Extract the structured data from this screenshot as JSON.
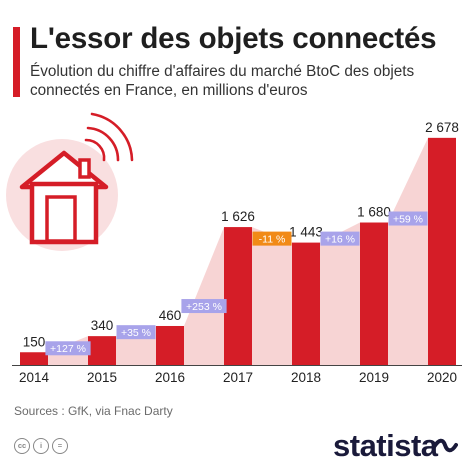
{
  "header": {
    "title": "L'essor des objets connectés",
    "subtitle": "Évolution du chiffre d'affaires du marché BtoC des objets connectés en France, en millions d'euros"
  },
  "footer": {
    "sources": "Sources : GfK, via Fnac Darty",
    "brand": "statista",
    "license_icons": [
      "cc-icon",
      "by-icon",
      "nd-icon"
    ]
  },
  "colors": {
    "accent": "#d51d27",
    "bar": "#d51d27",
    "area": "#f4c5c6",
    "badge_up": "#a8a3ea",
    "badge_down": "#f18a17",
    "brand": "#1a1a3a"
  },
  "decoration": {
    "icon": "connected-house-icon"
  },
  "chart_data": {
    "type": "bar",
    "categories": [
      "2014",
      "2015",
      "2016",
      "2017",
      "2018",
      "2019",
      "2020"
    ],
    "values": [
      150,
      340,
      460,
      1626,
      1443,
      1680,
      2678
    ],
    "value_labels": [
      "150",
      "340",
      "460",
      "1 626",
      "1 443",
      "1 680",
      "2 678"
    ],
    "growth_labels": [
      "+127 %",
      "+35 %",
      "+253 %",
      "-11 %",
      "+16 %",
      "+59 %"
    ],
    "growth_direction": [
      "up",
      "up",
      "up",
      "down",
      "up",
      "up"
    ],
    "title": "L'essor des objets connectés",
    "xlabel": "",
    "ylabel": "",
    "ylim": [
      0,
      2700
    ],
    "grid": false,
    "legend": "none"
  }
}
